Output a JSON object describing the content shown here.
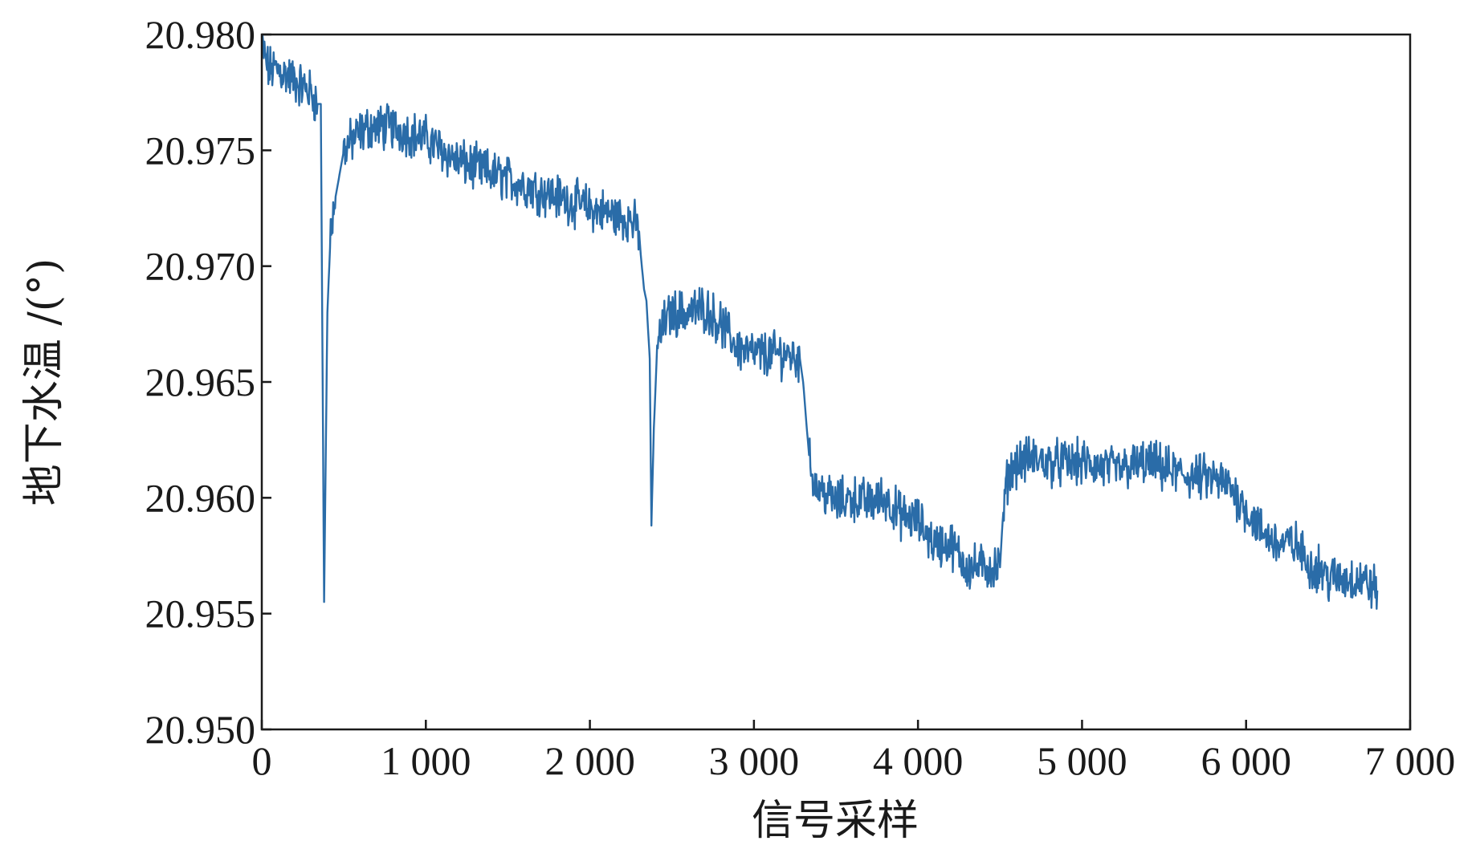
{
  "chart_data": {
    "type": "line",
    "title": "",
    "xlabel": "信号采样",
    "ylabel": "地下水温 /(°)",
    "xlim": [
      0,
      7000
    ],
    "ylim": [
      20.95,
      20.98
    ],
    "grid": false,
    "line_color": "#2a6ca8",
    "x_ticks": [
      {
        "value": 0,
        "label": "0"
      },
      {
        "value": 1000,
        "label": "1 000"
      },
      {
        "value": 2000,
        "label": "2 000"
      },
      {
        "value": 3000,
        "label": "3 000"
      },
      {
        "value": 4000,
        "label": "4 000"
      },
      {
        "value": 5000,
        "label": "5 000"
      },
      {
        "value": 6000,
        "label": "6 000"
      },
      {
        "value": 7000,
        "label": "7 000"
      }
    ],
    "y_ticks": [
      {
        "value": 20.95,
        "label": "20.950"
      },
      {
        "value": 20.955,
        "label": "20.955"
      },
      {
        "value": 20.96,
        "label": "20.960"
      },
      {
        "value": 20.965,
        "label": "20.965"
      },
      {
        "value": 20.97,
        "label": "20.970"
      },
      {
        "value": 20.975,
        "label": "20.975"
      },
      {
        "value": 20.98,
        "label": "20.980"
      }
    ],
    "series": [
      {
        "x": [
          0,
          40,
          100,
          200,
          300,
          340,
          360,
          370,
          380,
          390,
          400,
          420,
          450,
          500,
          560,
          650,
          800,
          1000,
          1200,
          1400,
          1600,
          1800,
          2000,
          2150,
          2250,
          2300,
          2310,
          2330,
          2345,
          2355,
          2365,
          2375,
          2390,
          2410,
          2450,
          2500,
          2600,
          2700,
          2800,
          2900,
          3000,
          3100,
          3200,
          3280,
          3300,
          3320,
          3340,
          3380,
          3420,
          3500,
          3600,
          3700,
          3800,
          3900,
          4000,
          4100,
          4200,
          4300,
          4350,
          4400,
          4450,
          4500,
          4520,
          4550,
          4600,
          4700,
          4800,
          5000,
          5200,
          5400,
          5600,
          5800,
          5900,
          6000,
          6100,
          6200,
          6300,
          6400,
          6450,
          6500,
          6600,
          6700,
          6800
        ],
        "y": [
          20.9795,
          20.9785,
          20.9785,
          20.978,
          20.9775,
          20.977,
          20.977,
          20.966,
          20.9555,
          20.962,
          20.968,
          20.9715,
          20.973,
          20.975,
          20.9755,
          20.976,
          20.976,
          20.9755,
          20.9745,
          20.974,
          20.9735,
          20.973,
          20.9725,
          20.9722,
          20.972,
          20.9715,
          20.9705,
          20.969,
          20.9685,
          20.9672,
          20.966,
          20.9588,
          20.963,
          20.9665,
          20.9675,
          20.968,
          20.968,
          20.9682,
          20.9675,
          20.9665,
          20.9662,
          20.9662,
          20.9662,
          20.966,
          20.965,
          20.9632,
          20.9615,
          20.9605,
          20.9603,
          20.9598,
          20.96,
          20.9598,
          20.96,
          20.9592,
          20.959,
          20.958,
          20.958,
          20.957,
          20.957,
          20.957,
          20.957,
          20.957,
          20.9595,
          20.961,
          20.9615,
          20.9617,
          20.9615,
          20.9615,
          20.9612,
          20.9615,
          20.961,
          20.9608,
          20.9605,
          20.9595,
          20.9585,
          20.958,
          20.958,
          20.957,
          20.957,
          20.9565,
          20.9565,
          20.9565,
          20.956
        ]
      }
    ]
  }
}
